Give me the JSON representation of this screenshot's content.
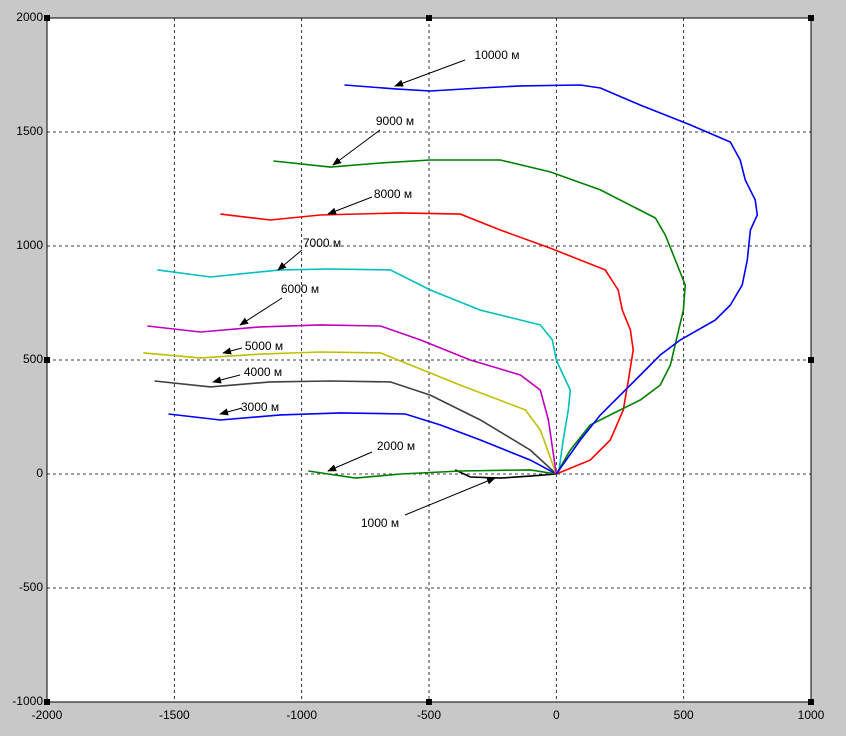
{
  "chart_data": {
    "type": "line",
    "xlim": [
      -2000,
      1000
    ],
    "ylim": [
      -1000,
      2000
    ],
    "xticks": [
      -2000,
      -1500,
      -1000,
      -500,
      0,
      500,
      1000
    ],
    "yticks": [
      -1000,
      -500,
      0,
      500,
      1000,
      1500,
      2000
    ],
    "grid": true,
    "series": [
      {
        "name": "1000 м",
        "color": "#000000",
        "x": [
          -397,
          -338,
          -220,
          -102,
          0
        ],
        "values": [
          18,
          -13,
          -18,
          -9,
          0
        ]
      },
      {
        "name": "2000 м",
        "color": "#008000",
        "x": [
          -974,
          -789,
          -612,
          -377,
          -102,
          0
        ],
        "values": [
          13,
          -18,
          0,
          13,
          18,
          0
        ]
      },
      {
        "name": "3000 м",
        "color": "#0000ff",
        "x": [
          -1523,
          -1319,
          -1084,
          -848,
          -593,
          -455,
          -298,
          -102,
          0
        ],
        "values": [
          263,
          237,
          259,
          268,
          263,
          215,
          149,
          61,
          0
        ]
      },
      {
        "name": "4000 м",
        "color": "#404040",
        "x": [
          -1578,
          -1358,
          -1123,
          -887,
          -652,
          -495,
          -298,
          -102,
          0
        ],
        "values": [
          408,
          382,
          404,
          408,
          404,
          346,
          237,
          105,
          0
        ]
      },
      {
        "name": "5000 м",
        "color": "#bfbf00",
        "x": [
          -1622,
          -1398,
          -1162,
          -927,
          -691,
          -573,
          -377,
          -122,
          -63,
          0
        ],
        "values": [
          531,
          509,
          526,
          535,
          531,
          478,
          390,
          281,
          193,
          0
        ]
      },
      {
        "name": "6000 м",
        "color": "#bf00bf",
        "x": [
          -1606,
          -1398,
          -1162,
          -927,
          -691,
          -534,
          -338,
          -141,
          -63,
          -31,
          0
        ],
        "values": [
          649,
          623,
          645,
          654,
          649,
          588,
          500,
          434,
          368,
          237,
          0
        ]
      },
      {
        "name": "7000 м",
        "color": "#00bfbf",
        "x": [
          -1566,
          -1358,
          -1084,
          -887,
          -652,
          -495,
          -298,
          -63,
          -16,
          0,
          27,
          55,
          47,
          27,
          8
        ],
        "values": [
          895,
          864,
          895,
          899,
          895,
          807,
          719,
          654,
          588,
          500,
          434,
          368,
          281,
          149,
          0
        ]
      },
      {
        "name": "8000 м",
        "color": "#ff0000",
        "x": [
          -1319,
          -1123,
          -927,
          -612,
          -377,
          -220,
          -24,
          192,
          243,
          259,
          291,
          302,
          283,
          263,
          212,
          133,
          0
        ],
        "values": [
          1140,
          1114,
          1136,
          1145,
          1140,
          1070,
          991,
          895,
          807,
          719,
          632,
          544,
          412,
          281,
          149,
          61,
          0
        ]
      },
      {
        "name": "9000 м",
        "color": "#008000",
        "x": [
          -1111,
          -887,
          -691,
          -495,
          -220,
          -24,
          173,
          389,
          428,
          467,
          506,
          499,
          471,
          448,
          408,
          330,
          212,
          133,
          55,
          0
        ],
        "values": [
          1373,
          1346,
          1364,
          1377,
          1377,
          1325,
          1246,
          1123,
          1048,
          939,
          829,
          719,
          588,
          478,
          390,
          325,
          259,
          215,
          105,
          0
        ]
      },
      {
        "name": "10000 м",
        "color": "#0000ff",
        "x": [
          -832,
          -632,
          -495,
          -298,
          -141,
          94,
          173,
          330,
          526,
          683,
          722,
          742,
          781,
          789,
          762,
          750,
          730,
          683,
          624,
          487,
          408,
          330,
          251,
          173,
          94,
          0
        ],
        "values": [
          1706,
          1689,
          1680,
          1693,
          1702,
          1706,
          1693,
          1618,
          1531,
          1456,
          1377,
          1289,
          1202,
          1136,
          1070,
          939,
          829,
          741,
          675,
          588,
          522,
          434,
          346,
          259,
          149,
          0
        ]
      }
    ]
  }
}
